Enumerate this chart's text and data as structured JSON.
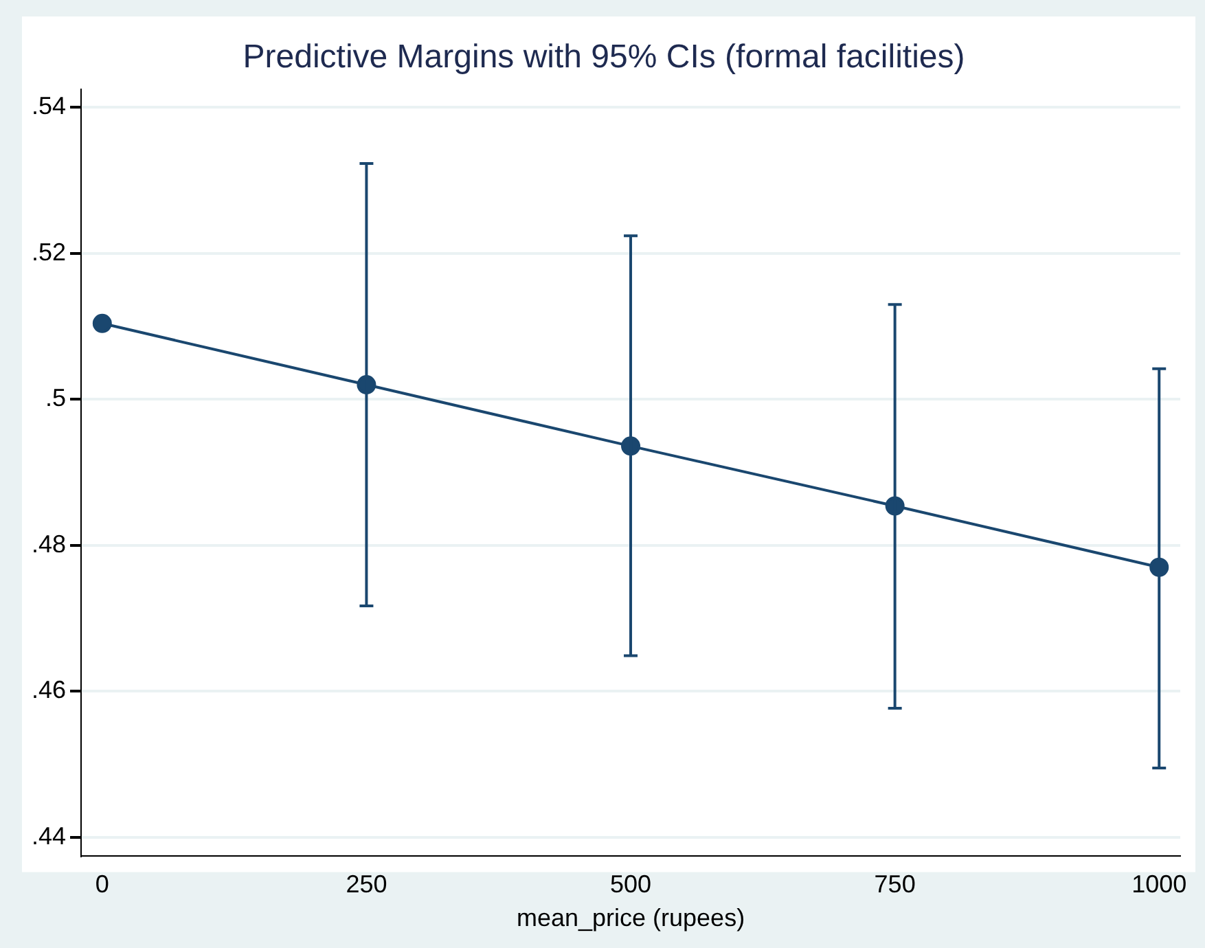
{
  "chart_data": {
    "type": "line",
    "title": "Predictive Margins with 95% CIs (formal facilities)",
    "xlabel": "mean_price (rupees)",
    "x": [
      0,
      250,
      500,
      750,
      1000
    ],
    "series": [
      {
        "color": "#1a476f",
        "values": [
          0.5104,
          0.502,
          0.4936,
          0.4854,
          0.477
        ],
        "errors": [
          null,
          [
            0.4717,
            0.5323
          ],
          [
            0.4649,
            0.5224
          ],
          [
            0.4577,
            0.513
          ],
          [
            0.4495,
            0.5042
          ]
        ]
      }
    ],
    "xlim": [
      -20,
      1020
    ],
    "xticks": [
      0,
      250,
      500,
      750,
      1000
    ],
    "ylim": [
      0.4375,
      0.5425
    ],
    "yticks": [
      {
        "value": 0.44,
        "label": ".44"
      },
      {
        "value": 0.46,
        "label": ".46"
      },
      {
        "value": 0.48,
        "label": ".48"
      },
      {
        "value": 0.5,
        "label": ".5"
      },
      {
        "value": 0.52,
        "label": ".52"
      },
      {
        "value": 0.54,
        "label": ".54"
      }
    ],
    "grid": "y",
    "legend": false,
    "marker": "circle",
    "line_style": "solid"
  }
}
